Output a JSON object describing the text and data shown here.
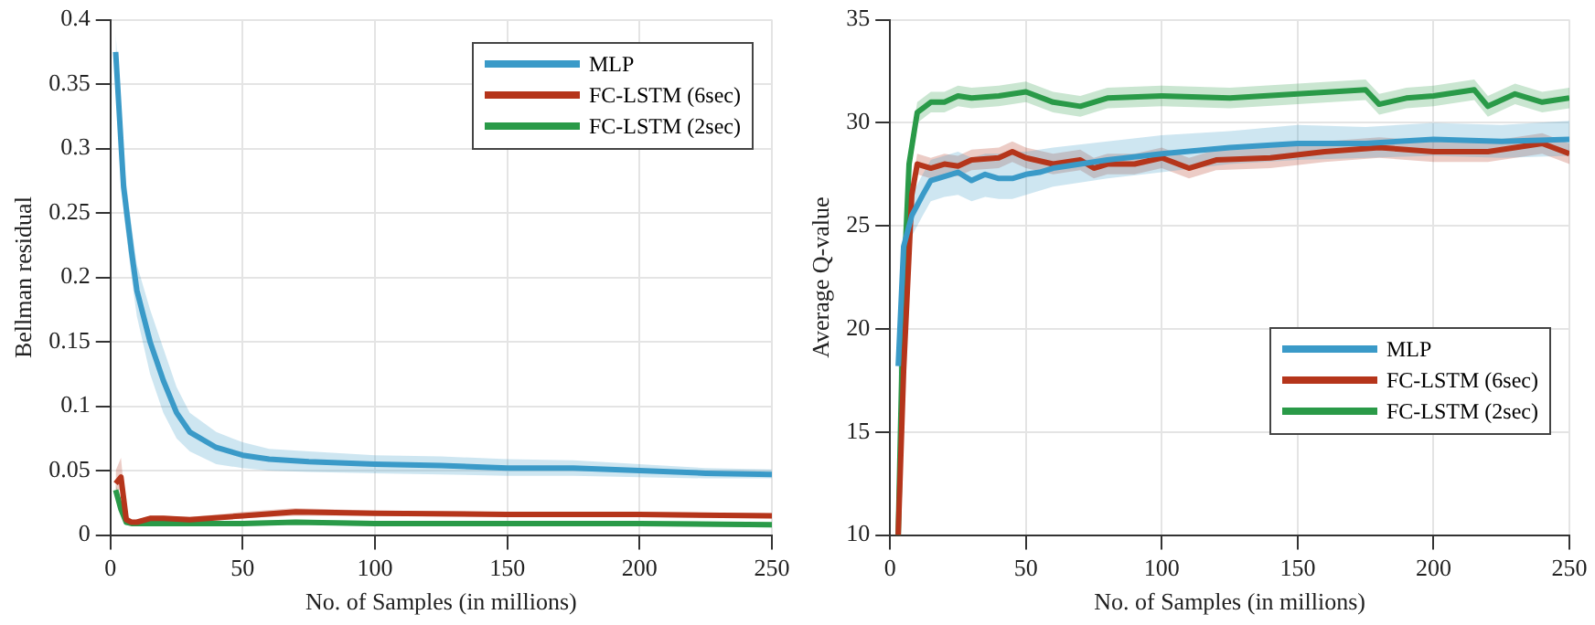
{
  "chart_data": [
    {
      "type": "line",
      "xlabel": "No. of Samples (in millions)",
      "ylabel": "Bellman residual",
      "xlim": [
        0,
        250
      ],
      "xticks": [
        0,
        50,
        100,
        150,
        200,
        250
      ],
      "ylim": [
        0,
        0.4
      ],
      "yticks": [
        0,
        0.05,
        0.1,
        0.15,
        0.2,
        0.25,
        0.3,
        0.35,
        0.4
      ],
      "grid": true,
      "legend": "top right",
      "marker": "none",
      "line_style": "solid",
      "series": [
        {
          "name": "MLP",
          "color": "#3a9ac8",
          "x": [
            2,
            5,
            8,
            10,
            15,
            20,
            25,
            30,
            40,
            50,
            60,
            75,
            100,
            125,
            150,
            175,
            200,
            225,
            250
          ],
          "values": [
            0.375,
            0.27,
            0.22,
            0.19,
            0.15,
            0.12,
            0.095,
            0.08,
            0.068,
            0.062,
            0.059,
            0.057,
            0.055,
            0.054,
            0.052,
            0.052,
            0.05,
            0.048,
            0.047
          ],
          "lower": [
            0.36,
            0.25,
            0.2,
            0.17,
            0.125,
            0.095,
            0.075,
            0.065,
            0.055,
            0.052,
            0.05,
            0.049,
            0.048,
            0.047,
            0.046,
            0.046,
            0.045,
            0.044,
            0.044
          ],
          "upper": [
            0.39,
            0.29,
            0.24,
            0.21,
            0.175,
            0.145,
            0.115,
            0.095,
            0.08,
            0.072,
            0.067,
            0.065,
            0.062,
            0.061,
            0.059,
            0.058,
            0.055,
            0.052,
            0.051
          ]
        },
        {
          "name": "FC-LSTM (6sec)",
          "color": "#b5351b",
          "x": [
            2,
            4,
            6,
            8,
            10,
            15,
            20,
            30,
            50,
            70,
            100,
            150,
            200,
            250
          ],
          "values": [
            0.04,
            0.045,
            0.012,
            0.01,
            0.01,
            0.013,
            0.013,
            0.012,
            0.015,
            0.018,
            0.017,
            0.016,
            0.016,
            0.015
          ],
          "lower": [
            0.035,
            0.035,
            0.009,
            0.008,
            0.008,
            0.011,
            0.011,
            0.01,
            0.013,
            0.015,
            0.015,
            0.014,
            0.014,
            0.013
          ],
          "upper": [
            0.05,
            0.06,
            0.016,
            0.012,
            0.012,
            0.015,
            0.015,
            0.014,
            0.018,
            0.021,
            0.019,
            0.018,
            0.018,
            0.017
          ]
        },
        {
          "name": "FC-LSTM (2sec)",
          "color": "#2a9a48",
          "x": [
            2,
            4,
            6,
            8,
            10,
            20,
            30,
            50,
            70,
            100,
            150,
            200,
            250
          ],
          "values": [
            0.035,
            0.02,
            0.01,
            0.009,
            0.009,
            0.009,
            0.009,
            0.009,
            0.01,
            0.009,
            0.009,
            0.009,
            0.008
          ],
          "lower": [
            0.03,
            0.016,
            0.008,
            0.007,
            0.007,
            0.007,
            0.007,
            0.007,
            0.008,
            0.007,
            0.007,
            0.007,
            0.006
          ],
          "upper": [
            0.04,
            0.024,
            0.012,
            0.011,
            0.011,
            0.011,
            0.011,
            0.011,
            0.012,
            0.011,
            0.011,
            0.011,
            0.01
          ]
        }
      ]
    },
    {
      "type": "line",
      "xlabel": "No. of Samples (in millions)",
      "ylabel": "Average Q-value",
      "xlim": [
        0,
        250
      ],
      "xticks": [
        0,
        50,
        100,
        150,
        200,
        250
      ],
      "ylim": [
        10,
        35
      ],
      "yticks": [
        10,
        15,
        20,
        25,
        30,
        35
      ],
      "grid": true,
      "legend": "bottom right",
      "marker": "none",
      "line_style": "solid",
      "series": [
        {
          "name": "MLP",
          "color": "#3a9ac8",
          "x": [
            3,
            5,
            8,
            12,
            15,
            20,
            25,
            30,
            35,
            40,
            45,
            50,
            55,
            60,
            80,
            100,
            125,
            150,
            175,
            200,
            225,
            250
          ],
          "values": [
            18.2,
            24,
            25.5,
            26.5,
            27.2,
            27.4,
            27.6,
            27.2,
            27.5,
            27.3,
            27.3,
            27.5,
            27.6,
            27.8,
            28.2,
            28.5,
            28.8,
            29,
            29,
            29.2,
            29.1,
            29.2
          ],
          "lower": [
            17.5,
            23,
            24.5,
            25.5,
            26.2,
            26.4,
            26.5,
            26.2,
            26.4,
            26.3,
            26.3,
            26.5,
            26.7,
            26.9,
            27.3,
            27.6,
            28,
            28.2,
            28.3,
            28.4,
            28.3,
            28.4
          ],
          "upper": [
            19,
            25,
            26.5,
            27.5,
            28.2,
            28.4,
            28.6,
            28.3,
            28.5,
            28.5,
            28.6,
            28.6,
            28.7,
            28.8,
            29.1,
            29.4,
            29.6,
            29.9,
            29.8,
            30,
            29.9,
            30.1
          ]
        },
        {
          "name": "FC-LSTM (6sec)",
          "color": "#b5351b",
          "x": [
            3,
            5,
            8,
            10,
            15,
            20,
            25,
            30,
            40,
            45,
            50,
            60,
            70,
            75,
            80,
            90,
            100,
            110,
            120,
            140,
            160,
            180,
            200,
            220,
            240,
            250
          ],
          "values": [
            10,
            18,
            26.5,
            28,
            27.8,
            28,
            27.9,
            28.2,
            28.3,
            28.6,
            28.3,
            28,
            28.2,
            27.8,
            28,
            28,
            28.3,
            27.8,
            28.2,
            28.3,
            28.6,
            28.8,
            28.6,
            28.6,
            29,
            28.5
          ],
          "lower": [
            10,
            17.5,
            26,
            27.5,
            27.3,
            27.5,
            27.4,
            27.7,
            27.8,
            28.1,
            27.8,
            27.5,
            27.7,
            27.3,
            27.5,
            27.5,
            27.8,
            27.3,
            27.7,
            27.8,
            28.1,
            28.3,
            28.1,
            28.1,
            28.5,
            28
          ],
          "upper": [
            10.5,
            18.5,
            27,
            28.5,
            28.3,
            28.5,
            28.4,
            28.7,
            28.8,
            29.1,
            28.8,
            28.5,
            28.7,
            28.3,
            28.5,
            28.5,
            28.8,
            28.3,
            28.7,
            28.8,
            29.1,
            29.3,
            29.1,
            29.1,
            29.5,
            29
          ]
        },
        {
          "name": "FC-LSTM (2sec)",
          "color": "#2a9a48",
          "x": [
            3,
            5,
            7,
            10,
            15,
            20,
            25,
            30,
            40,
            50,
            60,
            70,
            80,
            100,
            125,
            150,
            175,
            180,
            190,
            200,
            215,
            220,
            230,
            240,
            250
          ],
          "values": [
            10,
            22,
            28,
            30.5,
            31,
            31,
            31.3,
            31.2,
            31.3,
            31.5,
            31,
            30.8,
            31.2,
            31.3,
            31.2,
            31.4,
            31.6,
            30.9,
            31.2,
            31.3,
            31.6,
            30.8,
            31.4,
            31,
            31.2
          ],
          "lower": [
            10,
            21.5,
            27.5,
            30,
            30.5,
            30.5,
            30.8,
            30.7,
            30.8,
            31,
            30.5,
            30.3,
            30.7,
            30.8,
            30.7,
            30.9,
            31.1,
            30.4,
            30.7,
            30.8,
            31.1,
            30.3,
            30.9,
            30.5,
            30.7
          ],
          "upper": [
            10.5,
            22.5,
            28.5,
            31,
            31.5,
            31.5,
            31.8,
            31.7,
            31.8,
            32,
            31.5,
            31.3,
            31.7,
            31.8,
            31.7,
            31.9,
            32.1,
            31.4,
            31.7,
            31.8,
            32.1,
            31.3,
            31.9,
            31.5,
            31.7
          ]
        }
      ]
    }
  ]
}
